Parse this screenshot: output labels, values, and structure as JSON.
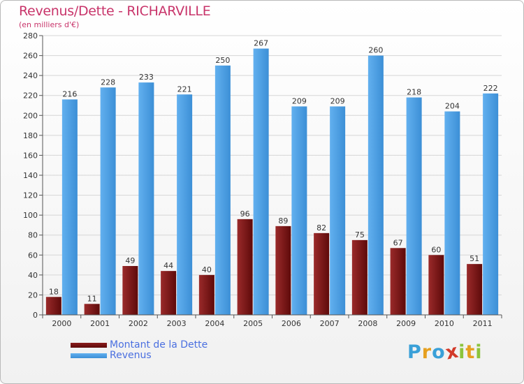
{
  "title": "Revenus/Dette - RICHARVILLE",
  "subtitle": "(en milliers d'€)",
  "legend": {
    "debt_label": "Montant de la Dette",
    "revenue_label": "Revenus"
  },
  "logo": {
    "text": "Proxiti",
    "letters": [
      {
        "ch": "P",
        "color": "#3aa0d8"
      },
      {
        "ch": "r",
        "color": "#e6a020"
      },
      {
        "ch": "o",
        "color": "#3aa0d8"
      },
      {
        "ch": "x",
        "color": "#d23a2a"
      },
      {
        "ch": "i",
        "color": "#8cc43c"
      },
      {
        "ch": "t",
        "color": "#e6a020"
      },
      {
        "ch": "i",
        "color": "#8cc43c"
      }
    ]
  },
  "colors": {
    "debt": "#6b0d0d",
    "debt_light": "#9a2a2a",
    "revenue": "#3c8fd6",
    "revenue_light": "#62b0ef",
    "grid": "#d6d6d6",
    "title": "#c8346a",
    "legend_text": "#4a6fe0"
  },
  "chart_data": {
    "type": "bar",
    "title": "Revenus/Dette - RICHARVILLE",
    "subtitle": "(en milliers d'€)",
    "categories": [
      "2000",
      "2001",
      "2002",
      "2003",
      "2004",
      "2005",
      "2006",
      "2007",
      "2008",
      "2009",
      "2010",
      "2011"
    ],
    "series": [
      {
        "name": "Montant de la Dette",
        "values": [
          18,
          11,
          49,
          44,
          40,
          96,
          89,
          82,
          75,
          67,
          60,
          51
        ]
      },
      {
        "name": "Revenus",
        "values": [
          216,
          228,
          233,
          221,
          250,
          267,
          209,
          209,
          260,
          218,
          204,
          222
        ]
      }
    ],
    "ylim": [
      0,
      280
    ],
    "yticks": [
      0,
      20,
      40,
      60,
      80,
      100,
      120,
      140,
      160,
      180,
      200,
      220,
      240,
      260,
      280
    ],
    "grid": true,
    "legend_position": "bottom-left"
  }
}
